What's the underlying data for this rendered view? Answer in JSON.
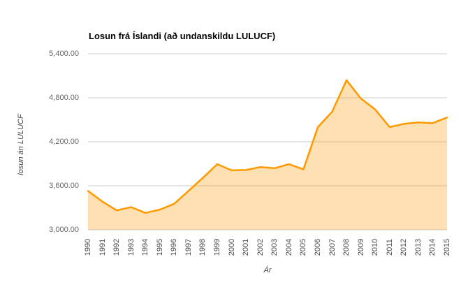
{
  "chart_data": {
    "type": "area",
    "title": "Losun frá Íslandi (að undanskildu LULUCF)",
    "xlabel": "Ár",
    "ylabel": "losun án LULUCF",
    "categories": [
      "1990",
      "1991",
      "1992",
      "1993",
      "1994",
      "1995",
      "1996",
      "1997",
      "1998",
      "1999",
      "2000",
      "2001",
      "2002",
      "2003",
      "2004",
      "2005",
      "2006",
      "2007",
      "2008",
      "2009",
      "2010",
      "2011",
      "2012",
      "2013",
      "2014",
      "2015"
    ],
    "values": [
      3530,
      3385,
      3265,
      3310,
      3230,
      3275,
      3355,
      3530,
      3710,
      3895,
      3810,
      3815,
      3855,
      3840,
      3895,
      3825,
      4400,
      4610,
      5040,
      4790,
      4640,
      4400,
      4445,
      4465,
      4455,
      4530
    ],
    "ylim": [
      3000,
      5400
    ],
    "y_ticks": {
      "values": [
        3000,
        3600,
        4200,
        4800,
        5400
      ],
      "labels": [
        "3,000.00",
        "3,600.00",
        "4,200.00",
        "4,800.00",
        "5,400.00"
      ]
    },
    "grid": true,
    "legend": "none",
    "colors": {
      "line": "#FF9900",
      "fill_opacity": 0.3,
      "grid": "#CCCCCC",
      "title": "#000000",
      "y_tick_label": "#666666",
      "x_tick_label": "#4C4C4C",
      "axis_title": "#444444",
      "background": "#FFFFFF"
    }
  }
}
